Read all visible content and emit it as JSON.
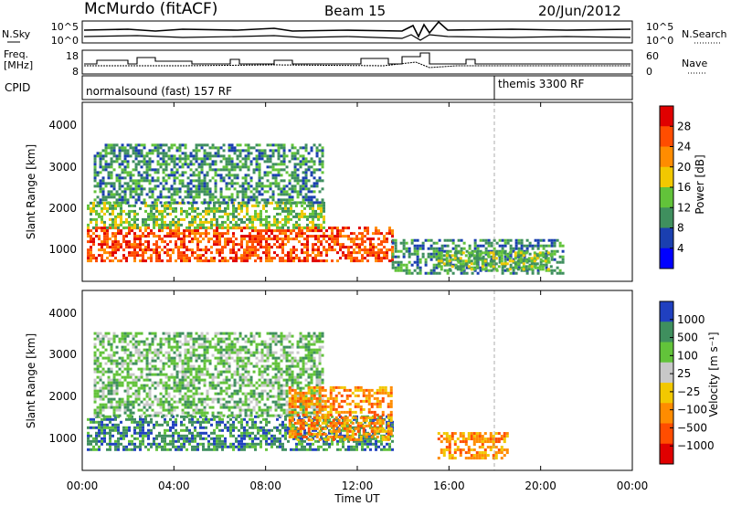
{
  "header": {
    "station": "McMurdo (fitACF)",
    "beam": "Beam 15",
    "date": "20/Jun/2012"
  },
  "noise_panel": {
    "left_label": "N.Sky",
    "right_label": "N.Search",
    "left_ticks": [
      "10^5",
      "10^0"
    ],
    "right_ticks": [
      "10^5",
      "10^0"
    ]
  },
  "freq_panel": {
    "left_label_line1": "Freq.",
    "left_label_line2": "[MHz]",
    "right_label": "Nave",
    "left_ticks": [
      "18",
      "8"
    ],
    "right_ticks": [
      "60",
      "0"
    ]
  },
  "cpid_panel": {
    "label": "CPID",
    "segments": [
      {
        "name": "normalsound (fast) 157 RF",
        "start_hour": 0
      },
      {
        "name": "themis 3300 RF",
        "start_hour": 18
      }
    ]
  },
  "power_panel": {
    "ylabel": "Slant Range [km]",
    "yticks": [
      "4000",
      "3000",
      "2000",
      "1000"
    ],
    "colorbar_label": "Power [dB]",
    "colorbar_ticks": [
      "28",
      "24",
      "20",
      "16",
      "12",
      "8",
      "4"
    ],
    "colors": [
      "#e00000",
      "#ff4d00",
      "#ff8c00",
      "#f2c800",
      "#62c33a",
      "#3f8f5e",
      "#1a3fb0",
      "#0000ff"
    ]
  },
  "velocity_panel": {
    "ylabel": "Slant Range [km]",
    "yticks": [
      "4000",
      "3000",
      "2000",
      "1000"
    ],
    "colorbar_label": "Velocity [m s⁻¹]",
    "colorbar_ticks": [
      "1000",
      "500",
      "100",
      "25",
      "−25",
      "−100",
      "−500",
      "−1000"
    ],
    "colors": [
      "#2040c0",
      "#3f8f5e",
      "#62c33a",
      "#c8c8c8",
      "#f2c800",
      "#ff8c00",
      "#ff4d00",
      "#e00000"
    ]
  },
  "xaxis": {
    "label": "Time UT",
    "ticks": [
      "00:00",
      "04:00",
      "08:00",
      "12:00",
      "16:00",
      "20:00",
      "00:00"
    ]
  },
  "chart_data": {
    "type": "heatmap",
    "title": "McMurdo (fitACF) Beam 15 20/Jun/2012",
    "xlabel": "Time UT",
    "ylabel": "Slant Range [km]",
    "x_range_hours": [
      0,
      24
    ],
    "y_range_km": [
      180,
      4500
    ],
    "panels": [
      {
        "name": "Power",
        "units": "dB",
        "colorbar_range": [
          0,
          30
        ],
        "regions": [
          {
            "t": [
              0.2,
              13.5
            ],
            "r": [
              700,
              1500
            ],
            "value": 24
          },
          {
            "t": [
              0.2,
              10.5
            ],
            "r": [
              1500,
              2100
            ],
            "value": 12
          },
          {
            "t": [
              0.5,
              10.5
            ],
            "r": [
              2100,
              3500
            ],
            "value": 8
          },
          {
            "t": [
              13.5,
              21.0
            ],
            "r": [
              350,
              1200
            ],
            "value": 8
          },
          {
            "t": [
              15.5,
              20.5
            ],
            "r": [
              500,
              900
            ],
            "value": 14
          }
        ]
      },
      {
        "name": "Velocity",
        "units": "m s-1",
        "colorbar_range": [
          -1000,
          1000
        ],
        "regions": [
          {
            "t": [
              0.2,
              13.5
            ],
            "r": [
              700,
              1500
            ],
            "value": 300
          },
          {
            "t": [
              0.5,
              10.5
            ],
            "r": [
              1500,
              3500
            ],
            "value": 25
          },
          {
            "t": [
              9.0,
              13.5
            ],
            "r": [
              900,
              2200
            ],
            "value": -100
          },
          {
            "t": [
              15.5,
              18.5
            ],
            "r": [
              450,
              1100
            ],
            "value": -100
          }
        ]
      }
    ],
    "cpid_change_hour": 18
  }
}
